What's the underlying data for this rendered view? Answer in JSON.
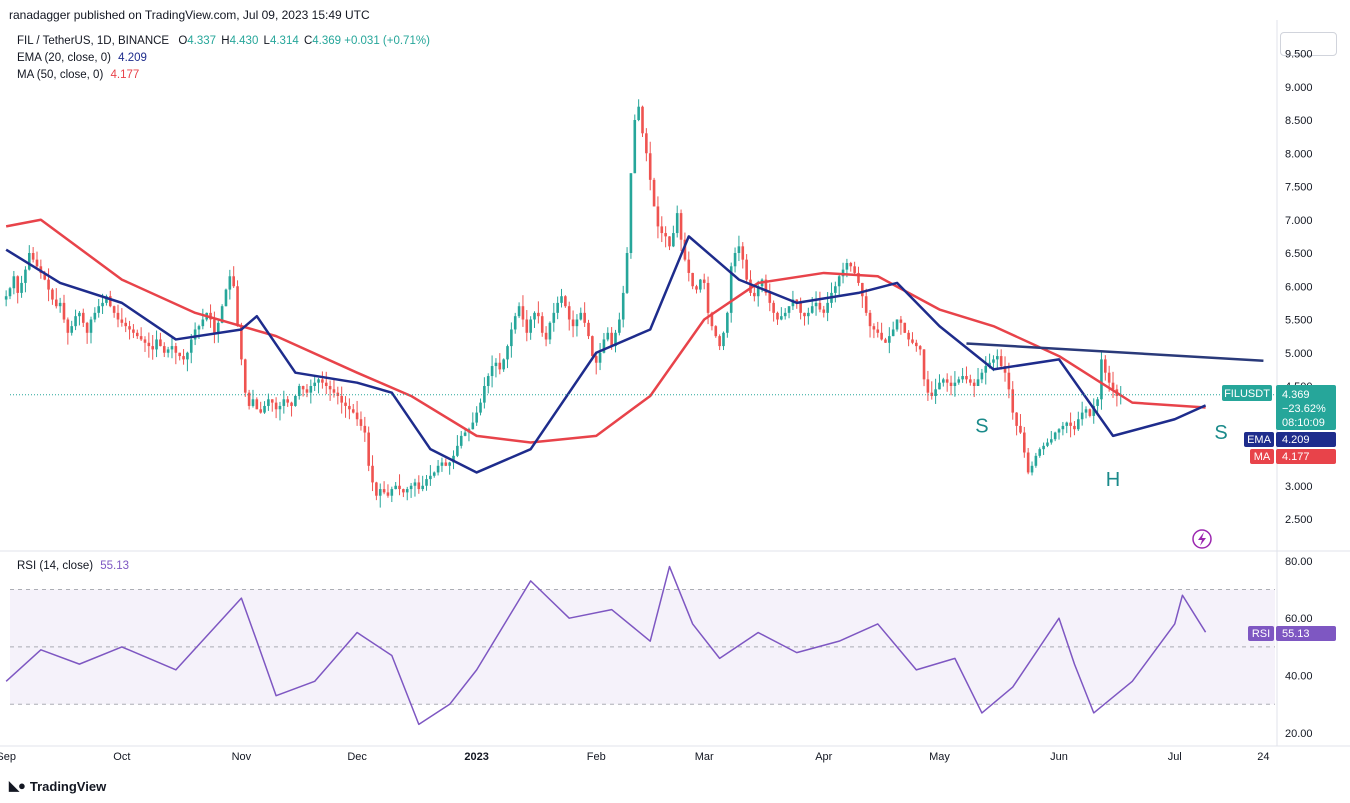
{
  "publisher": "ranadagger published on TradingView.com, Jul 09, 2023 15:49 UTC",
  "symbol_line": "FIL / TetherUS, 1D, BINANCE",
  "ohlc": {
    "o_label": "O",
    "o": "4.337",
    "h_label": "H",
    "h": "4.430",
    "l_label": "L",
    "l": "4.314",
    "c_label": "C",
    "c": "4.369",
    "chg": "+0.031 (+0.71%)"
  },
  "ema_legend": {
    "label": "EMA (20, close, 0)",
    "value": "4.209"
  },
  "ma_legend": {
    "label": "MA (50, close, 0)",
    "value": "4.177"
  },
  "rsi_legend": {
    "label": "RSI (14, close)",
    "value": "55.13"
  },
  "tags": {
    "price_label": "FILUSDT",
    "price": "4.369",
    "change": "−23.62%",
    "countdown": "08:10:09",
    "ema_tag": "EMA",
    "ema_val": "4.209",
    "ma_tag": "MA",
    "ma_val": "4.177",
    "rsi_tag": "RSI",
    "rsi_val": "55.13"
  },
  "annotations": {
    "left_shoulder": "S",
    "head": "H",
    "right_shoulder": "S"
  },
  "colors": {
    "up": "#26a69a",
    "down": "#ef5350",
    "ema": "#1e2c8c",
    "ma": "#e8434a",
    "rsi": "#7e57c2",
    "trend": "#2a3a7a",
    "price_tag": "#26a69a"
  },
  "brand": "TradingView",
  "chart_data": {
    "type": "candlestick",
    "price_axis": {
      "ticks": [
        2.5,
        3.0,
        3.5,
        4.0,
        4.5,
        5.0,
        5.5,
        6.0,
        6.5,
        7.0,
        7.5,
        8.0,
        8.5,
        9.0,
        9.5
      ],
      "tick_labels": [
        "2.500",
        "3.000",
        "3.500",
        "4.000",
        "4.500",
        "5.000",
        "5.500",
        "6.000",
        "6.500",
        "7.000",
        "7.500",
        "8.000",
        "8.500",
        "9.000",
        "9.500"
      ]
    },
    "rsi_axis": {
      "ticks": [
        20,
        40,
        60,
        80
      ],
      "tick_labels": [
        "20.00",
        "40.00",
        "60.00",
        "80.00"
      ],
      "bands": [
        30,
        50,
        70
      ]
    },
    "time_axis": {
      "labels": [
        "Sep",
        "Oct",
        "Nov",
        "Dec",
        "2023",
        "Feb",
        "Mar",
        "Apr",
        "May",
        "Jun",
        "Jul",
        "24"
      ],
      "dates": [
        "2022-09-01",
        "2022-10-01",
        "2022-11-01",
        "2022-12-01",
        "2023-01-01",
        "2023-02-01",
        "2023-03-01",
        "2023-04-01",
        "2023-05-01",
        "2023-06-01",
        "2023-07-01",
        "2023-07-24"
      ]
    },
    "trendline": {
      "x": [
        "2023-05-08",
        "2023-07-24"
      ],
      "y": [
        5.14,
        4.88
      ]
    },
    "ohlc_daily": {
      "start": "2022-09-01",
      "close": [
        5.85,
        5.97,
        6.15,
        5.9,
        6.05,
        6.25,
        6.5,
        6.4,
        6.3,
        6.2,
        6.1,
        5.95,
        5.8,
        5.7,
        5.75,
        5.5,
        5.3,
        5.4,
        5.55,
        5.6,
        5.45,
        5.3,
        5.5,
        5.6,
        5.7,
        5.75,
        5.85,
        5.7,
        5.6,
        5.5,
        5.45,
        5.4,
        5.35,
        5.3,
        5.25,
        5.2,
        5.15,
        5.1,
        5.05,
        5.2,
        5.1,
        5.0,
        5.05,
        5.1,
        5.0,
        4.95,
        4.9,
        5.0,
        5.2,
        5.35,
        5.4,
        5.5,
        5.6,
        5.5,
        5.3,
        5.45,
        5.7,
        5.95,
        6.15,
        6.0,
        5.4,
        4.9,
        4.4,
        4.2,
        4.3,
        4.15,
        4.1,
        4.2,
        4.3,
        4.25,
        4.15,
        4.2,
        4.3,
        4.25,
        4.2,
        4.35,
        4.5,
        4.45,
        4.4,
        4.5,
        4.55,
        4.6,
        4.55,
        4.5,
        4.45,
        4.4,
        4.35,
        4.25,
        4.2,
        4.15,
        4.1,
        4.0,
        3.9,
        3.8,
        3.3,
        3.05,
        2.85,
        2.95,
        2.9,
        2.85,
        2.95,
        3.0,
        2.95,
        2.9,
        2.95,
        3.0,
        3.05,
        2.95,
        3.0,
        3.1,
        3.15,
        3.2,
        3.3,
        3.35,
        3.3,
        3.35,
        3.45,
        3.6,
        3.75,
        3.8,
        3.85,
        3.95,
        4.1,
        4.25,
        4.5,
        4.65,
        4.8,
        4.85,
        4.75,
        4.9,
        5.1,
        5.35,
        5.55,
        5.7,
        5.5,
        5.3,
        5.5,
        5.6,
        5.55,
        5.3,
        5.2,
        5.45,
        5.6,
        5.75,
        5.85,
        5.7,
        5.5,
        5.4,
        5.5,
        5.6,
        5.45,
        5.25,
        4.95,
        4.85,
        5.0,
        5.2,
        5.3,
        5.1,
        5.3,
        5.5,
        5.9,
        6.5,
        7.7,
        8.5,
        8.7,
        8.3,
        8.0,
        7.6,
        7.2,
        6.9,
        6.8,
        6.75,
        6.6,
        6.8,
        7.1,
        6.7,
        6.4,
        6.2,
        6.0,
        5.95,
        6.1,
        6.05,
        5.6,
        5.4,
        5.25,
        5.1,
        5.3,
        5.6,
        6.3,
        6.5,
        6.6,
        6.4,
        6.1,
        5.9,
        5.85,
        6.0,
        6.1,
        5.9,
        5.75,
        5.6,
        5.5,
        5.55,
        5.6,
        5.7,
        5.8,
        5.75,
        5.6,
        5.55,
        5.6,
        5.7,
        5.75,
        5.65,
        5.6,
        5.75,
        5.9,
        6.0,
        6.15,
        6.25,
        6.35,
        6.3,
        6.2,
        6.05,
        5.85,
        5.6,
        5.4,
        5.35,
        5.3,
        5.2,
        5.15,
        5.25,
        5.35,
        5.5,
        5.45,
        5.3,
        5.2,
        5.15,
        5.1,
        5.05,
        4.6,
        4.4,
        4.35,
        4.45,
        4.55,
        4.6,
        4.55,
        4.5,
        4.55,
        4.6,
        4.65,
        4.6,
        4.55,
        4.5,
        4.6,
        4.7,
        4.8,
        4.85,
        4.9,
        4.95,
        4.8,
        4.7,
        4.45,
        4.1,
        3.9,
        3.8,
        3.5,
        3.2,
        3.3,
        3.45,
        3.55,
        3.6,
        3.65,
        3.7,
        3.8,
        3.85,
        3.9,
        3.95,
        3.9,
        3.85,
        4.0,
        4.1,
        4.15,
        4.05,
        4.2,
        4.3,
        4.9,
        4.7,
        4.55,
        4.45,
        4.35,
        4.369
      ]
    },
    "ema20": {
      "x": [
        "2022-09-01",
        "2022-09-15",
        "2022-10-01",
        "2022-10-15",
        "2022-11-01",
        "2022-11-05",
        "2022-11-15",
        "2022-12-01",
        "2022-12-10",
        "2022-12-20",
        "2023-01-01",
        "2023-01-15",
        "2023-02-01",
        "2023-02-15",
        "2023-02-25",
        "2023-03-10",
        "2023-03-25",
        "2023-04-10",
        "2023-04-20",
        "2023-05-01",
        "2023-05-15",
        "2023-06-01",
        "2023-06-15",
        "2023-07-01",
        "2023-07-09"
      ],
      "y": [
        6.55,
        6.05,
        5.75,
        5.2,
        5.35,
        5.55,
        4.7,
        4.55,
        4.4,
        3.55,
        3.2,
        3.55,
        5.0,
        5.35,
        6.75,
        6.1,
        5.75,
        5.9,
        6.05,
        5.4,
        4.75,
        4.9,
        3.75,
        4.0,
        4.209
      ]
    },
    "ma50": {
      "x": [
        "2022-09-01",
        "2022-09-10",
        "2022-10-01",
        "2022-10-20",
        "2022-11-10",
        "2022-12-01",
        "2022-12-15",
        "2023-01-01",
        "2023-01-15",
        "2023-02-01",
        "2023-02-15",
        "2023-03-01",
        "2023-03-15",
        "2023-04-01",
        "2023-04-15",
        "2023-05-01",
        "2023-05-15",
        "2023-06-01",
        "2023-06-20",
        "2023-07-09"
      ],
      "y": [
        6.9,
        7.0,
        6.1,
        5.6,
        5.25,
        4.7,
        4.35,
        3.75,
        3.65,
        3.75,
        4.35,
        5.5,
        6.05,
        6.2,
        6.15,
        5.65,
        5.4,
        4.95,
        4.25,
        4.177
      ]
    },
    "rsi14": {
      "x": [
        "2022-09-01",
        "2022-09-10",
        "2022-09-20",
        "2022-10-01",
        "2022-10-15",
        "2022-11-01",
        "2022-11-05",
        "2022-11-10",
        "2022-11-20",
        "2022-12-01",
        "2022-12-10",
        "2022-12-17",
        "2022-12-25",
        "2023-01-01",
        "2023-01-15",
        "2023-01-25",
        "2023-02-05",
        "2023-02-15",
        "2023-02-20",
        "2023-02-26",
        "2023-03-05",
        "2023-03-15",
        "2023-03-25",
        "2023-04-05",
        "2023-04-15",
        "2023-04-25",
        "2023-05-05",
        "2023-05-12",
        "2023-05-20",
        "2023-06-01",
        "2023-06-05",
        "2023-06-10",
        "2023-06-20",
        "2023-07-01",
        "2023-07-03",
        "2023-07-09"
      ],
      "y": [
        38,
        49,
        44,
        50,
        42,
        67,
        52,
        33,
        38,
        55,
        47,
        23,
        30,
        42,
        73,
        60,
        63,
        52,
        78,
        58,
        46,
        55,
        48,
        52,
        58,
        42,
        46,
        27,
        36,
        60,
        44,
        27,
        38,
        58,
        68,
        55.13
      ]
    }
  }
}
